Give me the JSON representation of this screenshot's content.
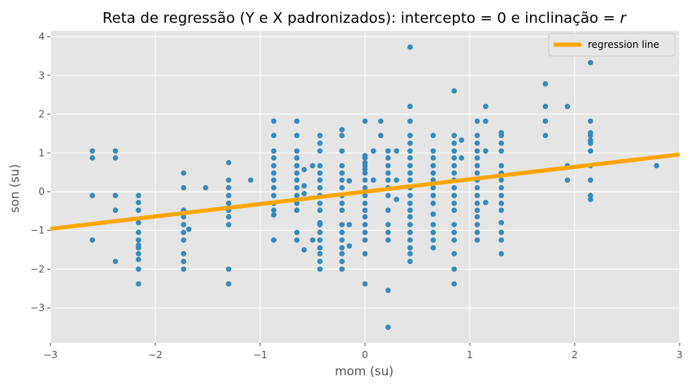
{
  "chart_data": {
    "type": "scatter",
    "title": "Reta de regressão (Y e X padronizados): intercepto = 0 e inclinação = ",
    "title_symbol": "r",
    "xlabel": "mom (su)",
    "ylabel": "son (su)",
    "xlim": [
      -3,
      3
    ],
    "ylim": [
      -3.9,
      4.15
    ],
    "grid": true,
    "xticks": [
      -3,
      -2,
      -1,
      0,
      1,
      2,
      3
    ],
    "xtick_labels": [
      "−3",
      "−2",
      "−1",
      "0",
      "1",
      "2",
      "3"
    ],
    "yticks": [
      -3,
      -2,
      -1,
      0,
      1,
      2,
      3,
      4
    ],
    "ytick_labels": [
      "−3",
      "−2",
      "−1",
      "0",
      "1",
      "2",
      "3",
      "4"
    ],
    "legend": {
      "label": "regression line",
      "position": "top-right"
    },
    "colors": {
      "points": "#348abd",
      "line": "#ffa500",
      "background": "#e5e5e5",
      "grid": "#ffffff"
    },
    "series": [
      {
        "name": "data",
        "type": "scatter",
        "points": [
          [
            -2.6,
            1.05
          ],
          [
            -2.6,
            0.87
          ],
          [
            -2.6,
            -0.1
          ],
          [
            -2.6,
            -1.25
          ],
          [
            -2.38,
            1.05
          ],
          [
            -2.38,
            0.87
          ],
          [
            -2.38,
            -0.1
          ],
          [
            -2.38,
            -0.48
          ],
          [
            -2.38,
            -1.8
          ],
          [
            -2.16,
            -0.1
          ],
          [
            -2.16,
            -0.28
          ],
          [
            -2.16,
            -0.48
          ],
          [
            -2.16,
            -0.8
          ],
          [
            -2.16,
            -1.05
          ],
          [
            -2.16,
            -1.25
          ],
          [
            -2.16,
            -1.38
          ],
          [
            -2.16,
            -1.45
          ],
          [
            -2.16,
            -1.6
          ],
          [
            -2.16,
            -1.75
          ],
          [
            -2.16,
            -2.0
          ],
          [
            -2.16,
            -2.38
          ],
          [
            -1.73,
            0.48
          ],
          [
            -1.73,
            0.1
          ],
          [
            -1.73,
            -0.48
          ],
          [
            -1.73,
            -0.65
          ],
          [
            -1.73,
            -0.85
          ],
          [
            -1.73,
            -1.05
          ],
          [
            -1.73,
            -1.25
          ],
          [
            -1.73,
            -1.6
          ],
          [
            -1.73,
            -1.8
          ],
          [
            -1.73,
            -2.0
          ],
          [
            -1.68,
            -0.97
          ],
          [
            -1.52,
            0.1
          ],
          [
            -1.3,
            0.75
          ],
          [
            -1.3,
            0.3
          ],
          [
            -1.3,
            0.1
          ],
          [
            -1.3,
            -0.1
          ],
          [
            -1.3,
            -0.3
          ],
          [
            -1.3,
            -0.48
          ],
          [
            -1.3,
            -0.65
          ],
          [
            -1.3,
            -0.85
          ],
          [
            -1.3,
            -2.0
          ],
          [
            -1.3,
            -2.38
          ],
          [
            -1.09,
            0.3
          ],
          [
            -0.87,
            1.82
          ],
          [
            -0.87,
            1.45
          ],
          [
            -0.87,
            1.05
          ],
          [
            -0.87,
            0.87
          ],
          [
            -0.87,
            0.67
          ],
          [
            -0.87,
            0.48
          ],
          [
            -0.87,
            0.3
          ],
          [
            -0.87,
            0.1
          ],
          [
            -0.87,
            -0.1
          ],
          [
            -0.87,
            -0.3
          ],
          [
            -0.87,
            -0.48
          ],
          [
            -0.87,
            -0.6
          ],
          [
            -0.87,
            -1.25
          ],
          [
            -0.65,
            1.82
          ],
          [
            -0.65,
            1.45
          ],
          [
            -0.65,
            1.05
          ],
          [
            -0.65,
            0.87
          ],
          [
            -0.65,
            0.67
          ],
          [
            -0.65,
            0.48
          ],
          [
            -0.65,
            0.3
          ],
          [
            -0.65,
            0.1
          ],
          [
            -0.65,
            -0.1
          ],
          [
            -0.65,
            -0.3
          ],
          [
            -0.65,
            -0.48
          ],
          [
            -0.65,
            -1.05
          ],
          [
            -0.65,
            -1.25
          ],
          [
            -0.65,
            0.67
          ],
          [
            -0.58,
            0.57
          ],
          [
            -0.58,
            0.15
          ],
          [
            -0.58,
            -0.05
          ],
          [
            -0.58,
            -1.5
          ],
          [
            -0.5,
            0.67
          ],
          [
            -0.5,
            -1.25
          ],
          [
            -0.43,
            1.45
          ],
          [
            -0.43,
            1.25
          ],
          [
            -0.43,
            1.05
          ],
          [
            -0.43,
            0.67
          ],
          [
            -0.43,
            0.48
          ],
          [
            -0.43,
            0.3
          ],
          [
            -0.43,
            0.1
          ],
          [
            -0.43,
            -0.1
          ],
          [
            -0.43,
            -0.3
          ],
          [
            -0.43,
            -0.48
          ],
          [
            -0.43,
            -0.8
          ],
          [
            -0.43,
            -0.85
          ],
          [
            -0.43,
            -1.05
          ],
          [
            -0.43,
            -1.25
          ],
          [
            -0.43,
            -1.45
          ],
          [
            -0.43,
            -1.6
          ],
          [
            -0.43,
            -1.8
          ],
          [
            -0.43,
            -2.0
          ],
          [
            -0.22,
            1.45
          ],
          [
            -0.22,
            1.05
          ],
          [
            -0.22,
            0.67
          ],
          [
            -0.22,
            0.48
          ],
          [
            -0.22,
            0.3
          ],
          [
            -0.22,
            0.1
          ],
          [
            -0.22,
            -0.1
          ],
          [
            -0.22,
            -0.3
          ],
          [
            -0.22,
            -0.48
          ],
          [
            -0.22,
            -0.85
          ],
          [
            -0.22,
            -1.05
          ],
          [
            -0.22,
            -1.25
          ],
          [
            -0.22,
            -1.45
          ],
          [
            -0.22,
            -1.6
          ],
          [
            -0.22,
            -1.8
          ],
          [
            -0.22,
            -2.0
          ],
          [
            -0.22,
            1.6
          ],
          [
            -0.15,
            0.28
          ],
          [
            -0.15,
            -0.85
          ],
          [
            -0.15,
            -1.4
          ],
          [
            0.0,
            1.82
          ],
          [
            0.0,
            0.93
          ],
          [
            0.0,
            0.87
          ],
          [
            0.0,
            0.75
          ],
          [
            0.0,
            0.67
          ],
          [
            0.0,
            0.58
          ],
          [
            0.0,
            0.48
          ],
          [
            0.0,
            0.3
          ],
          [
            0.0,
            0.1
          ],
          [
            0.0,
            -0.1
          ],
          [
            0.0,
            -0.3
          ],
          [
            0.0,
            -0.48
          ],
          [
            0.0,
            -0.65
          ],
          [
            0.0,
            -0.85
          ],
          [
            0.0,
            -1.05
          ],
          [
            0.0,
            -1.25
          ],
          [
            0.0,
            -1.6
          ],
          [
            0.0,
            -2.38
          ],
          [
            0.08,
            1.05
          ],
          [
            0.08,
            0.3
          ],
          [
            0.15,
            1.82
          ],
          [
            0.15,
            1.45
          ],
          [
            0.22,
            1.05
          ],
          [
            0.22,
            0.87
          ],
          [
            0.22,
            0.67
          ],
          [
            0.22,
            0.48
          ],
          [
            0.22,
            0.3
          ],
          [
            0.22,
            0.1
          ],
          [
            0.22,
            -0.1
          ],
          [
            0.22,
            -0.48
          ],
          [
            0.22,
            -0.85
          ],
          [
            0.22,
            -1.05
          ],
          [
            0.22,
            -1.25
          ],
          [
            0.22,
            -2.55
          ],
          [
            0.22,
            -3.5
          ],
          [
            0.3,
            1.05
          ],
          [
            0.3,
            0.3
          ],
          [
            0.3,
            -0.2
          ],
          [
            0.43,
            3.73
          ],
          [
            0.43,
            2.2
          ],
          [
            0.43,
            1.82
          ],
          [
            0.43,
            1.45
          ],
          [
            0.43,
            1.25
          ],
          [
            0.43,
            1.05
          ],
          [
            0.43,
            0.87
          ],
          [
            0.43,
            0.67
          ],
          [
            0.43,
            0.48
          ],
          [
            0.43,
            0.3
          ],
          [
            0.43,
            0.1
          ],
          [
            0.43,
            -0.1
          ],
          [
            0.43,
            -0.3
          ],
          [
            0.43,
            -0.48
          ],
          [
            0.43,
            -0.65
          ],
          [
            0.43,
            -0.85
          ],
          [
            0.43,
            -1.05
          ],
          [
            0.43,
            -1.25
          ],
          [
            0.43,
            -1.45
          ],
          [
            0.43,
            -1.6
          ],
          [
            0.43,
            -1.8
          ],
          [
            0.65,
            1.45
          ],
          [
            0.65,
            1.05
          ],
          [
            0.65,
            0.87
          ],
          [
            0.65,
            0.67
          ],
          [
            0.65,
            0.48
          ],
          [
            0.65,
            0.3
          ],
          [
            0.65,
            0.1
          ],
          [
            0.65,
            -0.1
          ],
          [
            0.65,
            -0.3
          ],
          [
            0.65,
            -0.58
          ],
          [
            0.65,
            -0.85
          ],
          [
            0.65,
            -1.05
          ],
          [
            0.65,
            -1.25
          ],
          [
            0.65,
            -1.45
          ],
          [
            0.85,
            2.6
          ],
          [
            0.85,
            1.45
          ],
          [
            0.85,
            1.25
          ],
          [
            0.85,
            1.05
          ],
          [
            0.85,
            0.87
          ],
          [
            0.85,
            0.67
          ],
          [
            0.85,
            0.48
          ],
          [
            0.85,
            0.3
          ],
          [
            0.85,
            0.1
          ],
          [
            0.85,
            -0.1
          ],
          [
            0.85,
            -0.3
          ],
          [
            0.85,
            -0.48
          ],
          [
            0.85,
            -0.85
          ],
          [
            0.85,
            -1.05
          ],
          [
            0.85,
            -1.25
          ],
          [
            0.85,
            -1.6
          ],
          [
            0.85,
            -2.0
          ],
          [
            0.85,
            -2.38
          ],
          [
            0.92,
            1.33
          ],
          [
            0.92,
            0.87
          ],
          [
            1.07,
            1.82
          ],
          [
            1.07,
            1.45
          ],
          [
            1.07,
            1.25
          ],
          [
            1.07,
            1.05
          ],
          [
            1.07,
            0.87
          ],
          [
            1.07,
            0.67
          ],
          [
            1.07,
            0.48
          ],
          [
            1.07,
            0.3
          ],
          [
            1.07,
            0.1
          ],
          [
            1.07,
            -0.1
          ],
          [
            1.07,
            -0.3
          ],
          [
            1.07,
            -0.48
          ],
          [
            1.07,
            -0.65
          ],
          [
            1.07,
            -0.85
          ],
          [
            1.07,
            -1.05
          ],
          [
            1.07,
            -1.25
          ],
          [
            1.15,
            2.2
          ],
          [
            1.15,
            1.82
          ],
          [
            1.15,
            1.05
          ],
          [
            1.15,
            -0.28
          ],
          [
            1.3,
            1.52
          ],
          [
            1.3,
            1.45
          ],
          [
            1.3,
            1.25
          ],
          [
            1.3,
            1.05
          ],
          [
            1.3,
            0.67
          ],
          [
            1.3,
            0.48
          ],
          [
            1.3,
            0.3
          ],
          [
            1.3,
            0.1
          ],
          [
            1.3,
            -0.1
          ],
          [
            1.3,
            -0.3
          ],
          [
            1.3,
            -0.48
          ],
          [
            1.3,
            -0.8
          ],
          [
            1.3,
            -1.05
          ],
          [
            1.3,
            -1.25
          ],
          [
            1.3,
            -1.6
          ],
          [
            1.72,
            2.78
          ],
          [
            1.72,
            2.2
          ],
          [
            1.72,
            1.82
          ],
          [
            1.72,
            1.45
          ],
          [
            1.93,
            2.2
          ],
          [
            1.93,
            0.67
          ],
          [
            1.93,
            0.3
          ],
          [
            2.15,
            3.33
          ],
          [
            2.15,
            1.82
          ],
          [
            2.15,
            1.52
          ],
          [
            2.15,
            1.45
          ],
          [
            2.15,
            1.33
          ],
          [
            2.15,
            1.25
          ],
          [
            2.15,
            1.05
          ],
          [
            2.15,
            0.67
          ],
          [
            2.15,
            0.3
          ],
          [
            2.15,
            -0.1
          ],
          [
            2.15,
            -0.2
          ],
          [
            2.78,
            0.67
          ]
        ]
      },
      {
        "name": "regression line",
        "type": "line",
        "x": [
          -3,
          3
        ],
        "y": [
          -0.96,
          0.96
        ]
      }
    ]
  }
}
